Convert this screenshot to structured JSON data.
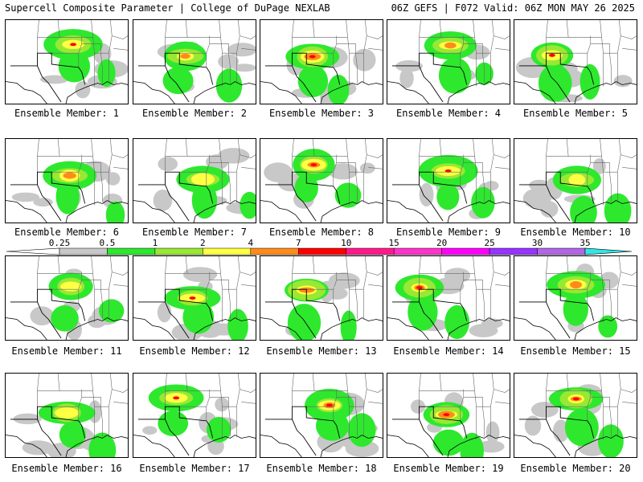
{
  "header": {
    "title_left": "Supercell Composite Parameter | College of DuPage NEXLAB",
    "title_right": "06Z GEFS | F072 Valid: 06Z MON MAY 26 2025"
  },
  "panels": [
    {
      "label": "Ensemble Member: 1"
    },
    {
      "label": "Ensemble Member: 2"
    },
    {
      "label": "Ensemble Member: 3"
    },
    {
      "label": "Ensemble Member: 4"
    },
    {
      "label": "Ensemble Member: 5"
    },
    {
      "label": "Ensemble Member: 6"
    },
    {
      "label": "Ensemble Member: 7"
    },
    {
      "label": "Ensemble Member: 8"
    },
    {
      "label": "Ensemble Member: 9"
    },
    {
      "label": "Ensemble Member: 10"
    },
    {
      "label": "Ensemble Member: 11"
    },
    {
      "label": "Ensemble Member: 12"
    },
    {
      "label": "Ensemble Member: 13"
    },
    {
      "label": "Ensemble Member: 14"
    },
    {
      "label": "Ensemble Member: 15"
    },
    {
      "label": "Ensemble Member: 16"
    },
    {
      "label": "Ensemble Member: 17"
    },
    {
      "label": "Ensemble Member: 18"
    },
    {
      "label": "Ensemble Member: 19"
    },
    {
      "label": "Ensemble Member: 20"
    }
  ],
  "colorbar": {
    "ticks": [
      "0.25",
      "0.5",
      "1",
      "2",
      "4",
      "7",
      "10",
      "15",
      "20",
      "25",
      "30",
      "35"
    ],
    "colors": [
      "#c8c8c8",
      "#2ee82e",
      "#99e833",
      "#ffff44",
      "#ff8c1a",
      "#ff0000",
      "#ff1a8c",
      "#ff33cc",
      "#ff00ff",
      "#9933ff",
      "#b266e6",
      "#33e6e6"
    ]
  }
}
